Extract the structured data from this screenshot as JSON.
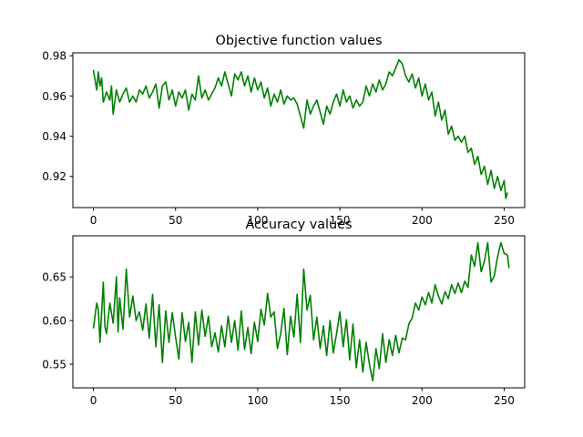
{
  "chart_data": [
    {
      "type": "line",
      "title": "Objective function values",
      "xlabel": "",
      "ylabel": "",
      "xlim": [
        -12.5,
        262.5
      ],
      "ylim": [
        0.9045,
        0.9815
      ],
      "xticks": [
        0,
        50,
        100,
        150,
        200,
        250
      ],
      "xtick_labels": [
        "0",
        "50",
        "100",
        "150",
        "200",
        "250"
      ],
      "yticks": [
        0.92,
        0.94,
        0.96,
        0.98
      ],
      "ytick_labels": [
        "0.92",
        "0.94",
        "0.96",
        "0.98"
      ],
      "grid": false,
      "legend": "none",
      "series": [
        {
          "color": "#008000",
          "points": [
            [
              0,
              0.973
            ],
            [
              2,
              0.963
            ],
            [
              3,
              0.972
            ],
            [
              4,
              0.965
            ],
            [
              5,
              0.969
            ],
            [
              6,
              0.957
            ],
            [
              8,
              0.962
            ],
            [
              10,
              0.958
            ],
            [
              11,
              0.965
            ],
            [
              12,
              0.951
            ],
            [
              14,
              0.963
            ],
            [
              16,
              0.957
            ],
            [
              18,
              0.961
            ],
            [
              20,
              0.964
            ],
            [
              22,
              0.957
            ],
            [
              24,
              0.96
            ],
            [
              26,
              0.957
            ],
            [
              28,
              0.963
            ],
            [
              30,
              0.961
            ],
            [
              32,
              0.965
            ],
            [
              34,
              0.959
            ],
            [
              36,
              0.962
            ],
            [
              38,
              0.966
            ],
            [
              40,
              0.954
            ],
            [
              42,
              0.965
            ],
            [
              44,
              0.967
            ],
            [
              46,
              0.958
            ],
            [
              48,
              0.963
            ],
            [
              50,
              0.955
            ],
            [
              52,
              0.962
            ],
            [
              54,
              0.959
            ],
            [
              56,
              0.963
            ],
            [
              58,
              0.953
            ],
            [
              60,
              0.961
            ],
            [
              62,
              0.958
            ],
            [
              64,
              0.97
            ],
            [
              66,
              0.959
            ],
            [
              68,
              0.963
            ],
            [
              70,
              0.958
            ],
            [
              72,
              0.961
            ],
            [
              74,
              0.964
            ],
            [
              76,
              0.969
            ],
            [
              78,
              0.965
            ],
            [
              80,
              0.972
            ],
            [
              82,
              0.966
            ],
            [
              84,
              0.96
            ],
            [
              86,
              0.971
            ],
            [
              88,
              0.968
            ],
            [
              90,
              0.972
            ],
            [
              92,
              0.965
            ],
            [
              94,
              0.97
            ],
            [
              96,
              0.962
            ],
            [
              98,
              0.969
            ],
            [
              100,
              0.963
            ],
            [
              102,
              0.967
            ],
            [
              104,
              0.959
            ],
            [
              106,
              0.964
            ],
            [
              108,
              0.955
            ],
            [
              110,
              0.961
            ],
            [
              112,
              0.957
            ],
            [
              114,
              0.963
            ],
            [
              116,
              0.956
            ],
            [
              118,
              0.96
            ],
            [
              120,
              0.958
            ],
            [
              122,
              0.959
            ],
            [
              124,
              0.956
            ],
            [
              126,
              0.95
            ],
            [
              128,
              0.944
            ],
            [
              130,
              0.958
            ],
            [
              132,
              0.951
            ],
            [
              134,
              0.955
            ],
            [
              136,
              0.958
            ],
            [
              138,
              0.952
            ],
            [
              140,
              0.946
            ],
            [
              142,
              0.955
            ],
            [
              144,
              0.951
            ],
            [
              146,
              0.957
            ],
            [
              148,
              0.961
            ],
            [
              150,
              0.955
            ],
            [
              152,
              0.963
            ],
            [
              154,
              0.957
            ],
            [
              156,
              0.96
            ],
            [
              158,
              0.954
            ],
            [
              160,
              0.958
            ],
            [
              162,
              0.955
            ],
            [
              164,
              0.957
            ],
            [
              166,
              0.965
            ],
            [
              168,
              0.96
            ],
            [
              170,
              0.966
            ],
            [
              172,
              0.962
            ],
            [
              174,
              0.968
            ],
            [
              176,
              0.963
            ],
            [
              178,
              0.966
            ],
            [
              180,
              0.972
            ],
            [
              182,
              0.97
            ],
            [
              184,
              0.974
            ],
            [
              186,
              0.978
            ],
            [
              188,
              0.976
            ],
            [
              190,
              0.97
            ],
            [
              192,
              0.967
            ],
            [
              194,
              0.971
            ],
            [
              196,
              0.964
            ],
            [
              198,
              0.969
            ],
            [
              200,
              0.96
            ],
            [
              202,
              0.966
            ],
            [
              204,
              0.958
            ],
            [
              206,
              0.962
            ],
            [
              208,
              0.95
            ],
            [
              210,
              0.957
            ],
            [
              212,
              0.948
            ],
            [
              214,
              0.953
            ],
            [
              216,
              0.941
            ],
            [
              218,
              0.945
            ],
            [
              220,
              0.938
            ],
            [
              222,
              0.94
            ],
            [
              224,
              0.937
            ],
            [
              226,
              0.94
            ],
            [
              228,
              0.932
            ],
            [
              230,
              0.934
            ],
            [
              232,
              0.926
            ],
            [
              234,
              0.93
            ],
            [
              236,
              0.921
            ],
            [
              238,
              0.925
            ],
            [
              240,
              0.916
            ],
            [
              242,
              0.923
            ],
            [
              244,
              0.914
            ],
            [
              246,
              0.92
            ],
            [
              248,
              0.913
            ],
            [
              250,
              0.918
            ],
            [
              251,
              0.909
            ],
            [
              252,
              0.912
            ]
          ]
        }
      ]
    },
    {
      "type": "line",
      "title": "Accuracy values",
      "xlabel": "",
      "ylabel": "",
      "xlim": [
        -12.5,
        262.5
      ],
      "ylim": [
        0.523,
        0.697
      ],
      "xticks": [
        0,
        50,
        100,
        150,
        200,
        250
      ],
      "xtick_labels": [
        "0",
        "50",
        "100",
        "150",
        "200",
        "250"
      ],
      "yticks": [
        0.55,
        0.6,
        0.65
      ],
      "ytick_labels": [
        "0.55",
        "0.60",
        "0.65"
      ],
      "grid": false,
      "legend": "none",
      "series": [
        {
          "color": "#008000",
          "points": [
            [
              0,
              0.591
            ],
            [
              2,
              0.62
            ],
            [
              3,
              0.612
            ],
            [
              4,
              0.575
            ],
            [
              6,
              0.644
            ],
            [
              7,
              0.593
            ],
            [
              8,
              0.585
            ],
            [
              10,
              0.62
            ],
            [
              12,
              0.597
            ],
            [
              14,
              0.65
            ],
            [
              15,
              0.587
            ],
            [
              16,
              0.626
            ],
            [
              18,
              0.59
            ],
            [
              20,
              0.659
            ],
            [
              22,
              0.604
            ],
            [
              24,
              0.628
            ],
            [
              26,
              0.6
            ],
            [
              28,
              0.61
            ],
            [
              30,
              0.589
            ],
            [
              32,
              0.619
            ],
            [
              34,
              0.58
            ],
            [
              36,
              0.63
            ],
            [
              38,
              0.57
            ],
            [
              40,
              0.618
            ],
            [
              42,
              0.552
            ],
            [
              44,
              0.611
            ],
            [
              46,
              0.575
            ],
            [
              48,
              0.609
            ],
            [
              50,
              0.581
            ],
            [
              52,
              0.556
            ],
            [
              54,
              0.609
            ],
            [
              56,
              0.576
            ],
            [
              58,
              0.598
            ],
            [
              60,
              0.552
            ],
            [
              62,
              0.61
            ],
            [
              64,
              0.572
            ],
            [
              66,
              0.612
            ],
            [
              68,
              0.582
            ],
            [
              70,
              0.605
            ],
            [
              72,
              0.57
            ],
            [
              74,
              0.586
            ],
            [
              76,
              0.564
            ],
            [
              78,
              0.594
            ],
            [
              80,
              0.57
            ],
            [
              82,
              0.605
            ],
            [
              84,
              0.575
            ],
            [
              86,
              0.6
            ],
            [
              88,
              0.566
            ],
            [
              90,
              0.611
            ],
            [
              92,
              0.567
            ],
            [
              94,
              0.592
            ],
            [
              96,
              0.562
            ],
            [
              98,
              0.598
            ],
            [
              100,
              0.576
            ],
            [
              102,
              0.613
            ],
            [
              104,
              0.595
            ],
            [
              106,
              0.631
            ],
            [
              108,
              0.604
            ],
            [
              110,
              0.61
            ],
            [
              112,
              0.568
            ],
            [
              114,
              0.585
            ],
            [
              116,
              0.614
            ],
            [
              118,
              0.561
            ],
            [
              120,
              0.605
            ],
            [
              122,
              0.581
            ],
            [
              124,
              0.63
            ],
            [
              126,
              0.575
            ],
            [
              128,
              0.659
            ],
            [
              130,
              0.612
            ],
            [
              132,
              0.629
            ],
            [
              134,
              0.578
            ],
            [
              136,
              0.604
            ],
            [
              138,
              0.568
            ],
            [
              140,
              0.594
            ],
            [
              142,
              0.56
            ],
            [
              144,
              0.6
            ],
            [
              146,
              0.563
            ],
            [
              148,
              0.585
            ],
            [
              150,
              0.61
            ],
            [
              152,
              0.57
            ],
            [
              154,
              0.601
            ],
            [
              156,
              0.555
            ],
            [
              158,
              0.596
            ],
            [
              160,
              0.546
            ],
            [
              162,
              0.578
            ],
            [
              164,
              0.541
            ],
            [
              166,
              0.575
            ],
            [
              168,
              0.55
            ],
            [
              170,
              0.531
            ],
            [
              172,
              0.568
            ],
            [
              174,
              0.545
            ],
            [
              176,
              0.585
            ],
            [
              178,
              0.552
            ],
            [
              180,
              0.578
            ],
            [
              182,
              0.56
            ],
            [
              184,
              0.583
            ],
            [
              186,
              0.563
            ],
            [
              188,
              0.58
            ],
            [
              190,
              0.578
            ],
            [
              192,
              0.596
            ],
            [
              194,
              0.603
            ],
            [
              196,
              0.62
            ],
            [
              198,
              0.612
            ],
            [
              200,
              0.627
            ],
            [
              202,
              0.618
            ],
            [
              204,
              0.632
            ],
            [
              206,
              0.62
            ],
            [
              208,
              0.641
            ],
            [
              210,
              0.628
            ],
            [
              212,
              0.619
            ],
            [
              214,
              0.633
            ],
            [
              216,
              0.625
            ],
            [
              218,
              0.641
            ],
            [
              220,
              0.631
            ],
            [
              222,
              0.643
            ],
            [
              224,
              0.632
            ],
            [
              226,
              0.645
            ],
            [
              228,
              0.638
            ],
            [
              230,
              0.675
            ],
            [
              232,
              0.662
            ],
            [
              234,
              0.689
            ],
            [
              236,
              0.656
            ],
            [
              238,
              0.668
            ],
            [
              240,
              0.689
            ],
            [
              242,
              0.644
            ],
            [
              244,
              0.651
            ],
            [
              246,
              0.673
            ],
            [
              248,
              0.689
            ],
            [
              250,
              0.677
            ],
            [
              252,
              0.675
            ],
            [
              253,
              0.66
            ]
          ]
        }
      ]
    }
  ]
}
